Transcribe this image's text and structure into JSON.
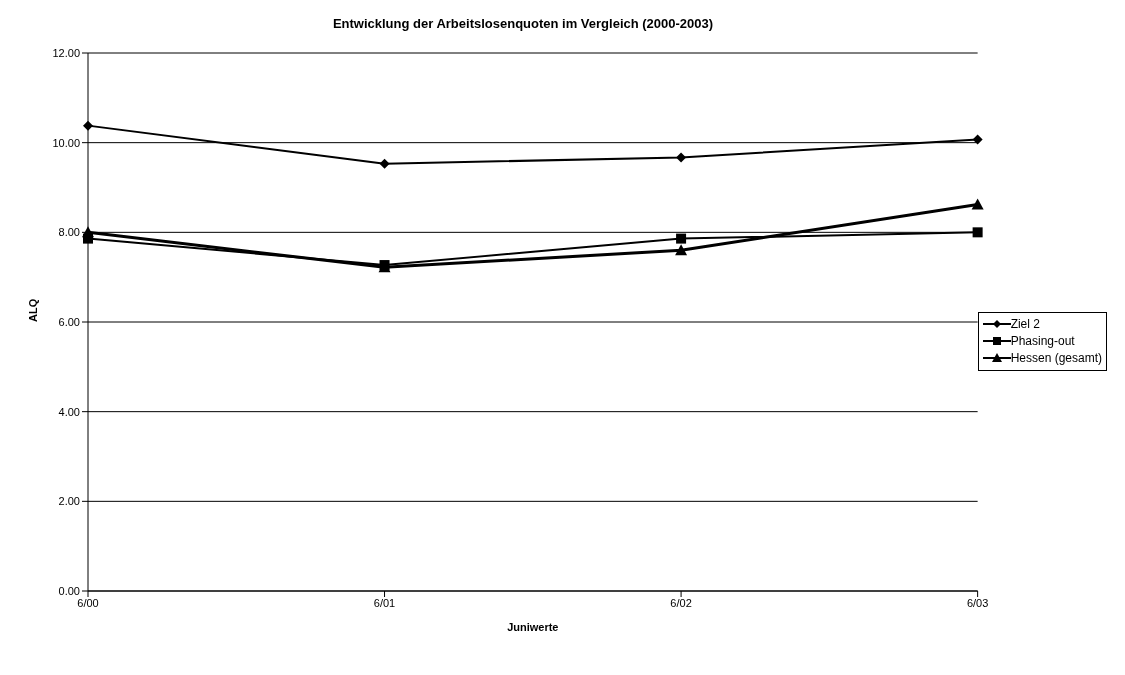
{
  "chart_data": {
    "type": "line",
    "title": "Entwicklung der Arbeitslosenquoten im Vergleich (2000-2003)",
    "xlabel": "Juniwerte",
    "ylabel": "ALQ",
    "categories": [
      "6/00",
      "6/01",
      "6/02",
      "6/03"
    ],
    "series": [
      {
        "name": "Ziel 2",
        "color": "#000000",
        "marker": "diamond",
        "values": [
          10.38,
          9.53,
          9.67,
          10.07
        ]
      },
      {
        "name": "Phasing-out",
        "color": "#000000",
        "marker": "square",
        "values": [
          7.86,
          7.27,
          7.86,
          8.0
        ]
      },
      {
        "name": "Hessen (gesamt)",
        "color": "#000000",
        "marker": "triangle",
        "values": [
          8.0,
          7.22,
          7.6,
          8.62
        ]
      }
    ],
    "ylim": [
      0,
      12
    ],
    "yticks": [
      {
        "value": 0,
        "label": "0.00"
      },
      {
        "value": 2,
        "label": "2.00"
      },
      {
        "value": 4,
        "label": "4.00"
      },
      {
        "value": 6,
        "label": "6.00"
      },
      {
        "value": 8,
        "label": "8.00"
      },
      {
        "value": 10,
        "label": "10.00"
      },
      {
        "value": 12,
        "label": "12.00"
      }
    ],
    "grid": "y",
    "legend": "right"
  }
}
